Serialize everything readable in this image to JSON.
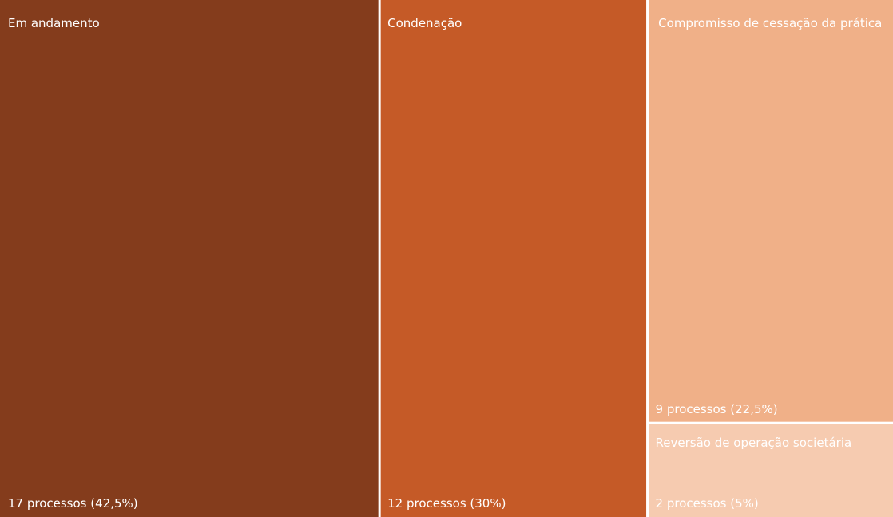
{
  "chart_data": {
    "type": "treemap",
    "unit": "processos",
    "items": [
      {
        "name": "Em andamento",
        "value": 17,
        "percent": 42.5,
        "label": "17 processos (42,5%)",
        "color": "#843c1c"
      },
      {
        "name": "Condenação",
        "value": 12,
        "percent": 30,
        "label": "12 processos (30%)",
        "color": "#c55a27"
      },
      {
        "name": "Compromisso de cessação da prática",
        "value": 9,
        "percent": 22.5,
        "label": "9 processos (22,5%)",
        "color": "#f0b088"
      },
      {
        "name": "Reversão de operação societária",
        "value": 2,
        "percent": 5,
        "label": "2 processos (5%)",
        "color": "#f6cbb0"
      }
    ]
  }
}
